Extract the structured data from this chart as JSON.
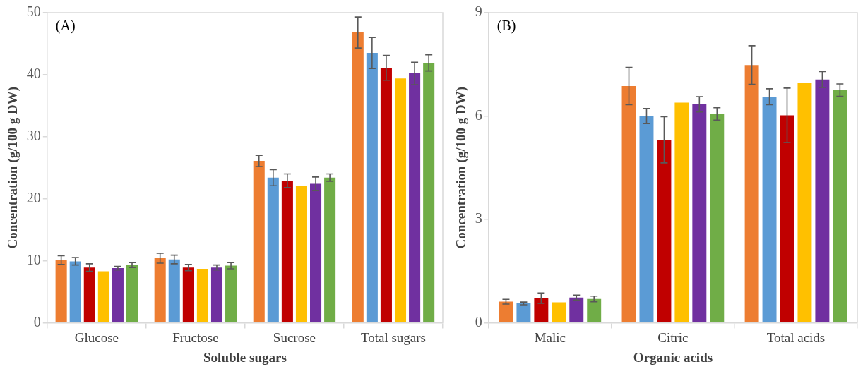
{
  "chart_data": [
    {
      "type": "bar",
      "xlabel": "Soluble sugars",
      "ylabel": "Concentration (g/100 g DW)",
      "annotations": [
        "(A)"
      ],
      "categories": [
        "Glucose",
        "Fructose",
        "Sucrose",
        "Total sugars"
      ],
      "ylim": [
        0,
        50
      ],
      "yticks": [
        0,
        10,
        20,
        30,
        40,
        50
      ],
      "grid": false,
      "series": [
        {
          "color": "#ed7d31",
          "values": [
            10.1,
            10.4,
            26.1,
            46.8
          ],
          "errors": [
            0.7,
            0.8,
            0.9,
            2.5
          ]
        },
        {
          "color": "#5b9bd5",
          "values": [
            9.9,
            10.2,
            23.4,
            43.5
          ],
          "errors": [
            0.6,
            0.7,
            1.3,
            2.5
          ]
        },
        {
          "color": "#c00000",
          "values": [
            8.9,
            8.9,
            22.9,
            41.1
          ],
          "errors": [
            0.6,
            0.5,
            1.1,
            2.0
          ]
        },
        {
          "color": "#ffc000",
          "values": [
            8.3,
            8.7,
            22.1,
            39.4
          ],
          "errors": [
            null,
            null,
            null,
            null
          ]
        },
        {
          "color": "#7030a0",
          "values": [
            8.8,
            8.9,
            22.4,
            40.2
          ],
          "errors": [
            0.3,
            0.4,
            1.1,
            1.8
          ]
        },
        {
          "color": "#70ad47",
          "values": [
            9.3,
            9.2,
            23.4,
            41.9
          ],
          "errors": [
            0.4,
            0.5,
            0.6,
            1.3
          ]
        }
      ]
    },
    {
      "type": "bar",
      "xlabel": "Organic acids",
      "ylabel": "Concentration (g/100 g DW)",
      "annotations": [
        "(B)"
      ],
      "categories": [
        "Malic",
        "Citric",
        "Total acids"
      ],
      "ylim": [
        0,
        9
      ],
      "yticks": [
        0,
        3,
        6,
        9
      ],
      "grid": false,
      "series": [
        {
          "color": "#ed7d31",
          "values": [
            0.61,
            6.87,
            7.48
          ],
          "errors": [
            0.07,
            0.54,
            0.56
          ]
        },
        {
          "color": "#5b9bd5",
          "values": [
            0.56,
            6.0,
            6.56
          ],
          "errors": [
            0.04,
            0.22,
            0.23
          ]
        },
        {
          "color": "#c00000",
          "values": [
            0.71,
            5.31,
            6.02
          ],
          "errors": [
            0.15,
            0.67,
            0.79
          ]
        },
        {
          "color": "#ffc000",
          "values": [
            0.59,
            6.39,
            6.97
          ],
          "errors": [
            null,
            null,
            null
          ]
        },
        {
          "color": "#7030a0",
          "values": [
            0.73,
            6.34,
            7.06
          ],
          "errors": [
            0.07,
            0.22,
            0.23
          ]
        },
        {
          "color": "#70ad47",
          "values": [
            0.69,
            6.06,
            6.75
          ],
          "errors": [
            0.08,
            0.18,
            0.18
          ]
        }
      ]
    }
  ]
}
